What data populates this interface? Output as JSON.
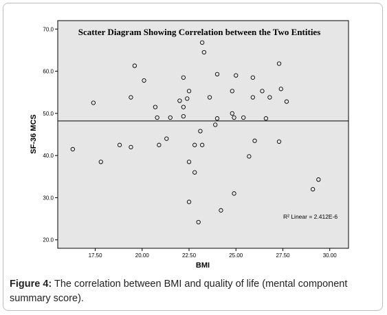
{
  "chart_data": {
    "type": "scatter",
    "title": "Scatter Diagram Showing Correlation between the Two Entities",
    "xlabel": "BMI",
    "ylabel": "SF-36 MCS",
    "xlim": [
      15.5,
      31.0
    ],
    "ylim": [
      18.0,
      72.0
    ],
    "x_ticks": [
      "17.50",
      "20.00",
      "22.50",
      "25.00",
      "27.50",
      "30.00"
    ],
    "y_ticks": [
      "20.0",
      "30.0",
      "40.0",
      "50.0",
      "60.0",
      "70.0"
    ],
    "fit_line": {
      "label": "R² Linear = 2.412E-6",
      "y": 48.2
    },
    "plot_background": "#e6e6e6",
    "points": [
      {
        "x": 16.3,
        "y": 41.5
      },
      {
        "x": 17.4,
        "y": 52.5
      },
      {
        "x": 17.8,
        "y": 38.5
      },
      {
        "x": 18.8,
        "y": 42.5
      },
      {
        "x": 19.4,
        "y": 53.8
      },
      {
        "x": 19.4,
        "y": 42.0
      },
      {
        "x": 19.6,
        "y": 61.3
      },
      {
        "x": 20.1,
        "y": 57.8
      },
      {
        "x": 20.7,
        "y": 51.5
      },
      {
        "x": 20.8,
        "y": 49.0
      },
      {
        "x": 20.9,
        "y": 42.5
      },
      {
        "x": 21.3,
        "y": 44.0
      },
      {
        "x": 21.5,
        "y": 49.0
      },
      {
        "x": 22.0,
        "y": 53.0
      },
      {
        "x": 22.2,
        "y": 58.5
      },
      {
        "x": 22.2,
        "y": 51.5
      },
      {
        "x": 22.2,
        "y": 49.3
      },
      {
        "x": 22.4,
        "y": 53.5
      },
      {
        "x": 22.5,
        "y": 55.3
      },
      {
        "x": 22.5,
        "y": 38.5
      },
      {
        "x": 22.5,
        "y": 29.0
      },
      {
        "x": 22.8,
        "y": 42.5
      },
      {
        "x": 22.8,
        "y": 36.0
      },
      {
        "x": 23.0,
        "y": 24.2
      },
      {
        "x": 23.1,
        "y": 45.8
      },
      {
        "x": 23.2,
        "y": 42.5
      },
      {
        "x": 23.2,
        "y": 66.8
      },
      {
        "x": 23.3,
        "y": 64.5
      },
      {
        "x": 23.6,
        "y": 53.8
      },
      {
        "x": 23.9,
        "y": 47.3
      },
      {
        "x": 24.0,
        "y": 59.3
      },
      {
        "x": 24.0,
        "y": 48.8
      },
      {
        "x": 24.2,
        "y": 27.0
      },
      {
        "x": 24.8,
        "y": 55.3
      },
      {
        "x": 24.8,
        "y": 50.0
      },
      {
        "x": 24.9,
        "y": 49.0
      },
      {
        "x": 24.9,
        "y": 31.0
      },
      {
        "x": 25.0,
        "y": 59.0
      },
      {
        "x": 25.4,
        "y": 49.0
      },
      {
        "x": 25.7,
        "y": 39.8
      },
      {
        "x": 25.9,
        "y": 58.5
      },
      {
        "x": 25.9,
        "y": 53.8
      },
      {
        "x": 26.0,
        "y": 43.5
      },
      {
        "x": 26.4,
        "y": 55.3
      },
      {
        "x": 26.6,
        "y": 48.8
      },
      {
        "x": 26.8,
        "y": 53.8
      },
      {
        "x": 27.3,
        "y": 61.8
      },
      {
        "x": 27.3,
        "y": 43.3
      },
      {
        "x": 27.4,
        "y": 55.8
      },
      {
        "x": 27.7,
        "y": 52.8
      },
      {
        "x": 29.1,
        "y": 32.0
      },
      {
        "x": 29.4,
        "y": 34.3
      }
    ]
  },
  "caption": {
    "label": "Figure 4:",
    "text": " The correlation between BMI and quality of life (mental component summary score)."
  }
}
